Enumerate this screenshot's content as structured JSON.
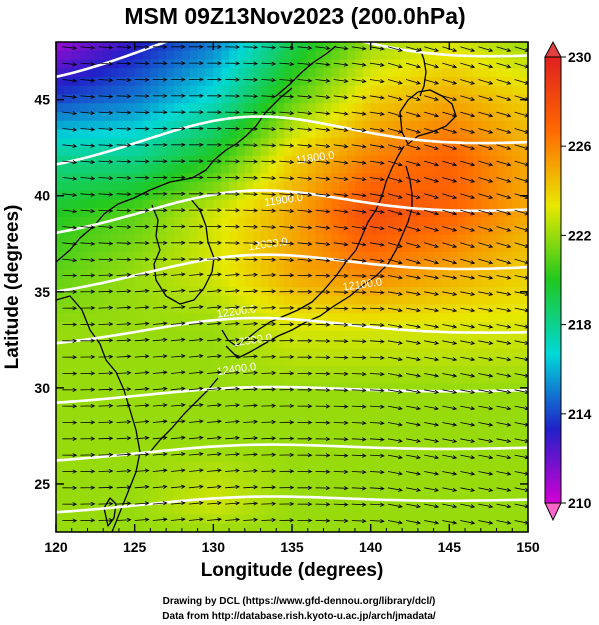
{
  "chart_data": {
    "type": "heatmap",
    "title": "MSM 09Z13Nov2023 (200.0hPa)",
    "xlabel": "Longitude (degrees)",
    "ylabel": "Latitude  (degrees)",
    "xlim": [
      120,
      150
    ],
    "ylim": [
      22.5,
      48
    ],
    "xticks": [
      "120",
      "125",
      "130",
      "135",
      "140",
      "145",
      "150"
    ],
    "yticks": [
      "25",
      "30",
      "35",
      "40",
      "45"
    ],
    "colorbar": {
      "min": 210,
      "max": 230,
      "ticks": [
        "210",
        "214",
        "218",
        "222",
        "226",
        "230"
      ],
      "colors": [
        "#d400d4",
        "#2020c8",
        "#00d8d8",
        "#20c820",
        "#e8e800",
        "#ff6a00",
        "#e02020"
      ]
    },
    "temperature_field_K": {
      "lon": [
        120,
        125,
        130,
        135,
        140,
        145,
        150
      ],
      "lat": [
        48,
        45,
        42,
        39,
        36,
        33,
        30,
        27,
        24,
        22.5
      ],
      "values": [
        [
          211,
          213,
          215,
          219,
          222,
          223,
          222
        ],
        [
          214,
          215,
          217,
          221,
          224,
          225,
          224
        ],
        [
          218,
          218,
          220,
          224,
          226,
          227,
          225
        ],
        [
          220,
          221,
          223,
          225,
          228,
          227,
          225
        ],
        [
          221,
          222,
          223,
          225,
          226,
          225,
          224
        ],
        [
          222,
          222,
          222,
          223,
          223,
          223,
          223
        ],
        [
          222,
          222,
          222,
          222,
          222,
          222,
          222
        ],
        [
          222,
          222,
          222,
          222,
          222,
          222,
          222
        ],
        [
          222,
          222,
          223,
          222,
          222,
          222,
          222
        ],
        [
          222,
          222,
          222,
          222,
          222,
          222,
          222
        ]
      ]
    },
    "contour_labels": [
      "11800.0",
      "11900.0",
      "12000.0",
      "12100.0",
      "12200.0",
      "12300.0",
      "12400.0"
    ],
    "wind": "westerly streamlines (arrows)"
  },
  "credits": {
    "line1": "Drawing by DCL (https://www.gfd-dennou.org/library/dcl/)",
    "line2": "Data from http://database.rish.kyoto-u.ac.jp/arch/jmadata/"
  }
}
